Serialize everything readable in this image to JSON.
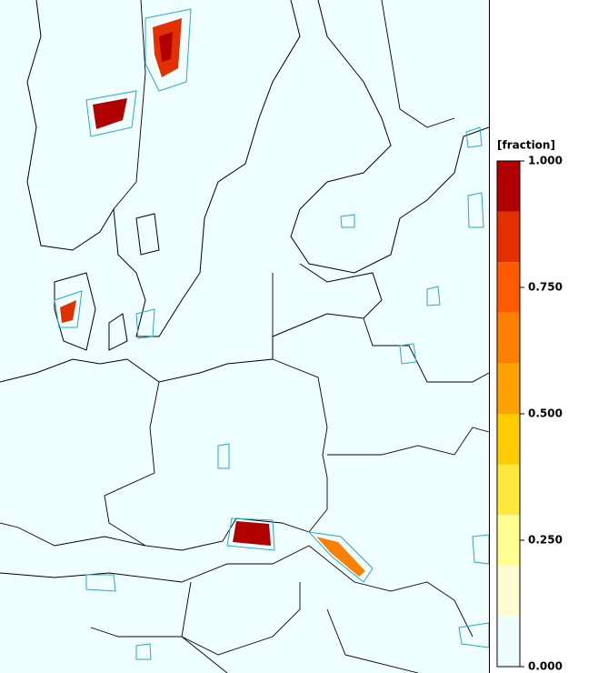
{
  "colorbar": {
    "title": "[fraction]",
    "bins": [
      0,
      0.1,
      0.2,
      0.3,
      0.4,
      0.5,
      0.6,
      0.7,
      0.8,
      0.9,
      1.0
    ],
    "colors": [
      "#eefefe",
      "#fffcd2",
      "#ffff90",
      "#ffe83c",
      "#ffcc00",
      "#ffa200",
      "#ff8000",
      "#ff5a00",
      "#e23000",
      "#b00000"
    ],
    "ticks": [
      {
        "value": 1,
        "label": "1.000"
      },
      {
        "value": 0.75,
        "label": "0.750"
      },
      {
        "value": 0.5,
        "label": "0.500"
      },
      {
        "value": 0.25,
        "label": "0.250"
      },
      {
        "value": 0,
        "label": "0.000"
      }
    ]
  }
}
